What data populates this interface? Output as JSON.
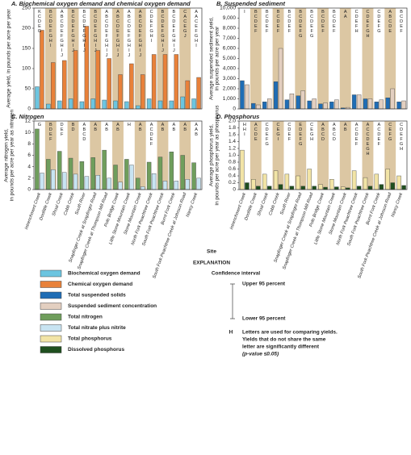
{
  "chart_data": [
    {
      "type": "bar",
      "title": "A. Biochemical oxygen demand and chemical oxygen demand",
      "ylabel": [
        "Average yield, in pounds per acre per year"
      ],
      "ylim": [
        0,
        250
      ],
      "yticks": [
        0,
        50,
        100,
        150,
        200,
        250
      ],
      "series": [
        {
          "name": "Biochemical oxygen demand",
          "color": "#6cc5e0",
          "values": [
            55,
            12,
            20,
            25,
            18,
            25,
            22,
            20,
            18,
            8,
            25,
            20,
            20,
            30,
            25
          ]
        },
        {
          "name": "Chemical oxygen demand",
          "color": "#e8813a",
          "values": [
            195,
            115,
            120,
            145,
            205,
            145,
            125,
            85,
            112,
            85,
            135,
            135,
            135,
            70,
            78
          ]
        }
      ],
      "letters": [
        "KCDEG",
        "BCDEFGHI",
        "ABCDEFGHIJ",
        "BCDEFGHIJ",
        "BCDEFGHIJ",
        "BCDEFGHIJ",
        "ABCDEFGHIJ",
        "ABCDEFGHIJ",
        "ABCDEFGHIJ",
        "ABCDEFGHIJ",
        "CDEFGHI",
        "BCDEFGHIJ",
        "BCDEFGHIJ",
        "CACEGJ",
        "AACEFGHI"
      ]
    },
    {
      "type": "bar",
      "title": "B. Suspended sediment",
      "ylabel": [
        "Average suspended sediment yield,",
        "in pounds per acre per year"
      ],
      "ylim": [
        0,
        10000
      ],
      "yticks": [
        0,
        {
          "value": 1000,
          "label": "1,000"
        },
        {
          "value": 2000,
          "label": "2,000"
        },
        {
          "value": 3000,
          "label": "3,000"
        },
        {
          "value": 4000,
          "label": "4,000"
        },
        {
          "value": 5000,
          "label": "5,000"
        },
        {
          "value": 6000,
          "label": "6,000"
        },
        {
          "value": 7000,
          "label": "7,000"
        },
        {
          "value": 8000,
          "label": "8,000"
        },
        {
          "value": 9000,
          "label": "9,000"
        },
        {
          "value": 10000,
          "label": "10,000"
        }
      ],
      "series": [
        {
          "name": "Total suspended solids",
          "color": "#1f6db5",
          "values": [
            2800,
            550,
            700,
            2700,
            900,
            1300,
            800,
            500,
            700,
            100,
            1400,
            1000,
            700,
            1100,
            700
          ]
        },
        {
          "name": "Suspended sediment concentration",
          "color": "#e3cfc0",
          "values": [
            2400,
            400,
            1000,
            6000,
            1500,
            1800,
            1000,
            600,
            900,
            150,
            1400,
            1000,
            900,
            2000,
            800
          ]
        }
      ],
      "letters": [
        "I",
        "BCDEF",
        "BCDEF",
        "BCDEF",
        "BCDEF",
        "BCDEFG",
        "BCDEFG",
        "BCDEF",
        "BCDEF",
        "AA",
        "CDEFH",
        "CDEFGH",
        "CDEFG",
        "ABCDE",
        "BCDEF"
      ]
    },
    {
      "type": "bar",
      "title": "C. Nitrogen",
      "ylabel": [
        "Average nitrogen yield,",
        "in pounds per acre per year as nitrogen"
      ],
      "ylim": [
        0,
        12
      ],
      "yticks": [
        0,
        2,
        4,
        6,
        8,
        10,
        12
      ],
      "categories": [
        "Intrenchment Creek",
        "Doolittle Creek",
        "Shoal Creek",
        "Cobb Creek",
        "South River",
        "Snapfinger Creek at Snapfinger Road",
        "Snapfinger Creek at Thompson Mill Road",
        "Pole Bridge Creek",
        "Little Stone Mountain Creek",
        "Stone Mountain Creek",
        "North Fork Peachtree Creek",
        "South Fork Peachtree Creek",
        "Burnt Fork Creek",
        "South Fork Peachtree Creek at Johnson Road",
        "Nancy Creek"
      ],
      "series": [
        {
          "name": "Total nitrogen",
          "color": "#6f9e5c",
          "values": [
            10.6,
            5.3,
            6.7,
            5.5,
            4.9,
            5.6,
            6.9,
            4.3,
            5.3,
            2.0,
            4.8,
            5.7,
            6.6,
            6.0,
            4.7
          ]
        },
        {
          "name": "Total nitrate plus nitrite",
          "color": "#c8e4f2",
          "values": [
            2.9,
            3.5,
            3.0,
            2.7,
            2.3,
            2.5,
            2.0,
            1.3,
            4.3,
            0.5,
            2.8,
            1.5,
            1.5,
            1.8,
            2.0
          ]
        }
      ],
      "letters": [
        "G",
        "BDEF",
        "DEF",
        "BD",
        "ABCD",
        "AB",
        "AB",
        "AB",
        "H",
        "AB",
        "ACDEF",
        "AB",
        "AB",
        "AB",
        "AAB"
      ]
    },
    {
      "type": "bar",
      "title": "D. Phosphorus",
      "ylabel": [
        "Average phosphorus yield,",
        "in pounds per acre per year as phosphorus"
      ],
      "ylim": [
        0,
        2.0
      ],
      "yticks": [
        0,
        0.2,
        0.4,
        0.6,
        0.8,
        {
          "value": 1,
          "label": "1.0"
        },
        1.2,
        1.4,
        1.6,
        1.8,
        {
          "value": 2,
          "label": "2.0"
        }
      ],
      "categories": [
        "Intrenchment Creek",
        "Doolittle Creek",
        "Shoal Creek",
        "Cobb Creek",
        "South River",
        "Snapfinger Creek at Snapfinger Road",
        "Snapfinger Creek at Thompson Mill Road",
        "Pole Bridge Creek",
        "Little Stone Mountain Creek",
        "Stone Mountain Creek",
        "North Fork Peachtree Creek",
        "South Fork Peachtree Creek",
        "Burnt Fork Creek",
        "South Fork Peachtree Creek at Johnson Road",
        "Nancy Creek"
      ],
      "series": [
        {
          "name": "Total phosphorus",
          "color": "#f2e4a6",
          "values": [
            1.15,
            0.3,
            0.45,
            0.55,
            0.45,
            0.4,
            0.6,
            0.15,
            0.3,
            0.08,
            0.55,
            0.35,
            0.45,
            0.6,
            0.4
          ]
        },
        {
          "name": "Dissolved phosphorus",
          "color": "#1f4f1f",
          "values": [
            0.2,
            0.1,
            0.1,
            0.15,
            0.1,
            0.1,
            0.1,
            0.07,
            0.08,
            0.05,
            0.1,
            0.1,
            0.15,
            0.2,
            0.12
          ]
        }
      ],
      "letters": [
        "HHI",
        "ACDE",
        "CDEFG",
        "CEGI",
        "CDEF",
        "EDEFG",
        "CEGH",
        "ABCD",
        "ABCD",
        "AB",
        "ACDEF",
        "ACCDEGH",
        "ACDEF",
        "CEFG",
        "CDEFGH"
      ]
    }
  ],
  "xlabel": "Site",
  "explanation": {
    "title": "EXPLANATION",
    "ci_title": "Confidence interval",
    "upper": "Upper 95 percent",
    "lower": "Lower 95 percent",
    "letter_key": "H",
    "letter_note": [
      "Letters are used for comparing yields.",
      "Yields that do not share the same",
      "letter are significantly different",
      "(p-value ≤0.05)"
    ]
  }
}
